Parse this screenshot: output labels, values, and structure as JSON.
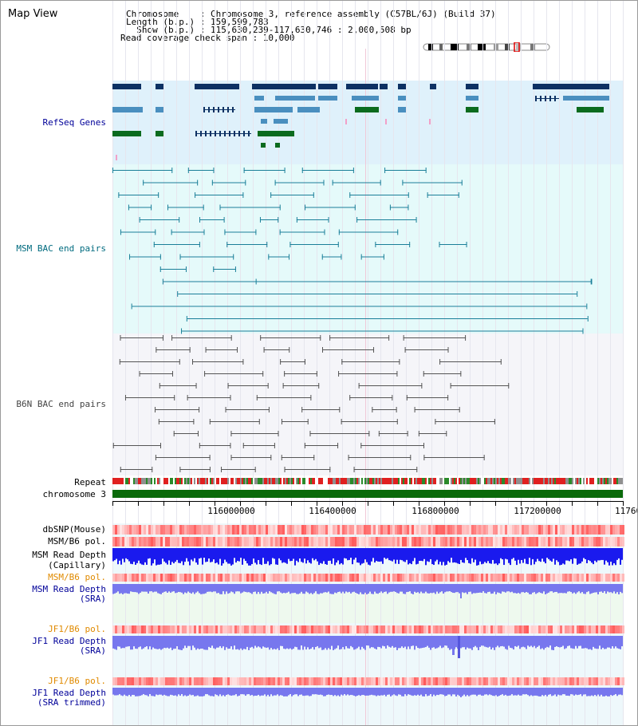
{
  "page_title": "Map View",
  "info": {
    "line1": "Chromosome    : Chromosome 3, reference assembly (C57BL/6J) (Build 37)",
    "line2": "Length (b.p.) : 159,599,783",
    "line3": "  Show (b.p.) : 115,630,239-117,630,746 : 2,000,508 bp",
    "line4": "Read coverage check span : 10,000"
  },
  "tracks": {
    "refseq": "RefSeq Genes",
    "msm_bac": "MSM BAC end pairs",
    "b6n_bac": "B6N BAC end pairs",
    "repeat": "Repeat",
    "chromosome": "chromosome 3",
    "dbsnp": "dbSNP(Mouse)",
    "msm_b6_pol_1": "MSM/B6 pol.",
    "msm_read_depth_cap_1": "MSM Read Depth",
    "msm_read_depth_cap_2": "(Capillary)",
    "msm_b6_pol_2": "MSM/B6 pol.",
    "msm_read_depth_sra_1": "MSM Read Depth",
    "msm_read_depth_sra_2": "(SRA)",
    "jf1_b6_pol_1": "JF1/B6 pol.",
    "jf1_read_depth_sra_1": "JF1 Read Depth",
    "jf1_read_depth_sra_2": "(SRA)",
    "jf1_b6_pol_2": "JF1/B6 pol.",
    "jf1_read_depth_trim_1": "JF1 Read Depth",
    "jf1_read_depth_trim_2": "(SRA trimmed)"
  },
  "axis": {
    "ticks": [
      "116000000",
      "116400000",
      "116800000",
      "117200000",
      "11760"
    ]
  },
  "colors": {
    "refseq_bg": "#dff1fb",
    "msm_bg": "#e5fafa",
    "b6n_bg": "#f5f5f9",
    "gene_dark": "#0d3163",
    "gene_mid": "#4a8fbf",
    "gene_green": "#0b6b1e",
    "msm_line": "#1a7f99",
    "b6n_line": "#555555",
    "chrom_green": "#0a6a0a",
    "depth_blue": "#1a1aee",
    "depth_light": "#7777ee"
  }
}
